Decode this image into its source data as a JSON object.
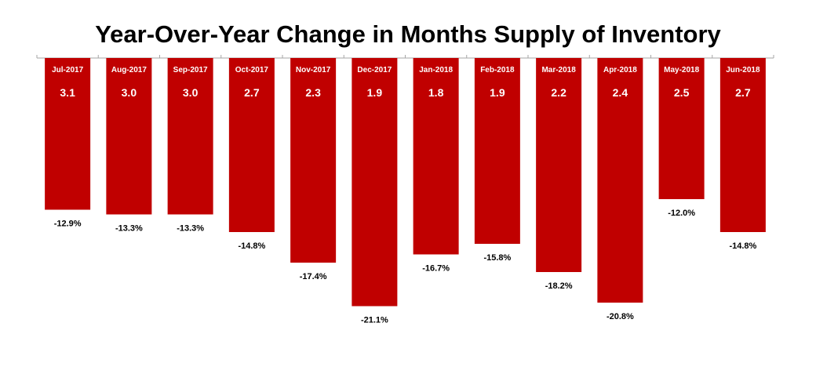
{
  "chart_data": {
    "type": "bar",
    "title": "Year-Over-Year Change in Months Supply of Inventory",
    "categories": [
      "Jul-2017",
      "Aug-2017",
      "Sep-2017",
      "Oct-2017",
      "Nov-2017",
      "Dec-2017",
      "Jan-2018",
      "Feb-2018",
      "Mar-2018",
      "Apr-2018",
      "May-2018",
      "Jun-2018"
    ],
    "series": [
      {
        "values": [
          -12.9,
          -13.3,
          -13.3,
          -14.8,
          -17.4,
          -21.1,
          -16.7,
          -15.8,
          -18.2,
          -20.8,
          -12.0,
          -14.8
        ],
        "labels": [
          "-12.9%",
          "-13.3%",
          "-13.3%",
          "-14.8%",
          "-17.4%",
          "-21.1%",
          "-16.7%",
          "-15.8%",
          "-18.2%",
          "-20.8%",
          "-12.0%",
          "-14.8%"
        ]
      }
    ],
    "months_supply": [
      "3.1",
      "3.0",
      "3.0",
      "2.7",
      "2.3",
      "1.9",
      "1.8",
      "1.9",
      "2.2",
      "2.4",
      "2.5",
      "2.7"
    ],
    "ylim": [
      -22,
      0
    ],
    "bar_color": "#c00000",
    "axis_color": "#a6a6a6"
  }
}
